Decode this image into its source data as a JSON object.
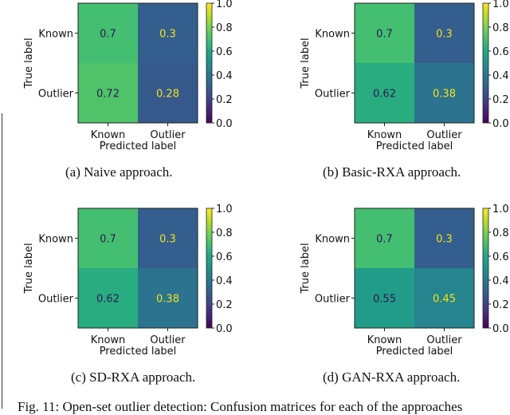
{
  "chart_data": [
    {
      "type": "heatmap",
      "id": "a",
      "caption": "(a)  Naive approach.",
      "xlabel": "Predicted label",
      "ylabel": "True label",
      "x_categories": [
        "Known",
        "Outlier"
      ],
      "y_categories": [
        "Known",
        "Outlier"
      ],
      "values": [
        [
          0.7,
          0.3
        ],
        [
          0.72,
          0.28
        ]
      ],
      "cell_labels": [
        [
          "0.7",
          "0.3"
        ],
        [
          "0.72",
          "0.28"
        ]
      ],
      "colormap": "viridis",
      "colorbar": {
        "range": [
          0.0,
          1.0
        ],
        "ticks": [
          "0.0",
          "0.2",
          "0.4",
          "0.6",
          "0.8",
          "1.0"
        ]
      }
    },
    {
      "type": "heatmap",
      "id": "b",
      "caption": "(b)  Basic-RXA approach.",
      "xlabel": "Predicted label",
      "ylabel": "True label",
      "x_categories": [
        "Known",
        "Outlier"
      ],
      "y_categories": [
        "Known",
        "Outlier"
      ],
      "values": [
        [
          0.7,
          0.3
        ],
        [
          0.62,
          0.38
        ]
      ],
      "cell_labels": [
        [
          "0.7",
          "0.3"
        ],
        [
          "0.62",
          "0.38"
        ]
      ],
      "colormap": "viridis",
      "colorbar": {
        "range": [
          0.0,
          1.0
        ],
        "ticks": [
          "0.0",
          "0.2",
          "0.4",
          "0.6",
          "0.8",
          "1.0"
        ]
      }
    },
    {
      "type": "heatmap",
      "id": "c",
      "caption": "(c)  SD-RXA approach.",
      "xlabel": "Predicted label",
      "ylabel": "True label",
      "x_categories": [
        "Known",
        "Outlier"
      ],
      "y_categories": [
        "Known",
        "Outlier"
      ],
      "values": [
        [
          0.7,
          0.3
        ],
        [
          0.62,
          0.38
        ]
      ],
      "cell_labels": [
        [
          "0.7",
          "0.3"
        ],
        [
          "0.62",
          "0.38"
        ]
      ],
      "colormap": "viridis",
      "colorbar": {
        "range": [
          0.0,
          1.0
        ],
        "ticks": [
          "0.0",
          "0.2",
          "0.4",
          "0.6",
          "0.8",
          "1.0"
        ]
      }
    },
    {
      "type": "heatmap",
      "id": "d",
      "caption": "(d)  GAN-RXA approach.",
      "xlabel": "Predicted label",
      "ylabel": "True label",
      "x_categories": [
        "Known",
        "Outlier"
      ],
      "y_categories": [
        "Known",
        "Outlier"
      ],
      "values": [
        [
          0.7,
          0.3
        ],
        [
          0.55,
          0.45
        ]
      ],
      "cell_labels": [
        [
          "0.7",
          "0.3"
        ],
        [
          "0.55",
          "0.45"
        ]
      ],
      "colormap": "viridis",
      "colorbar": {
        "range": [
          0.0,
          1.0
        ],
        "ticks": [
          "0.0",
          "0.2",
          "0.4",
          "0.6",
          "0.8",
          "1.0"
        ]
      }
    }
  ],
  "figure_caption": "Fig. 11:  Open-set outlier detection:  Confusion matrices for each of the approaches",
  "text_colors": {
    "dark": "#2b1a4f",
    "light": "#f2e31a"
  }
}
